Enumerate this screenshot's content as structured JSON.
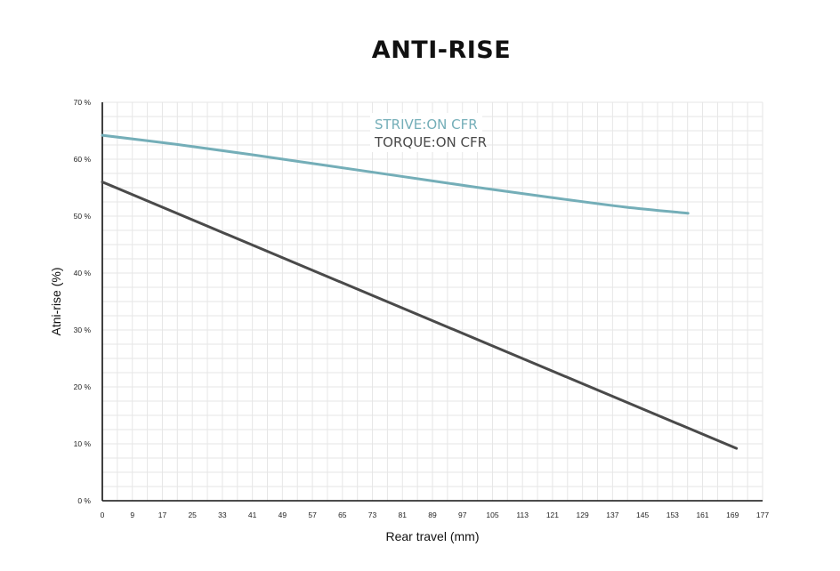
{
  "chart_data": {
    "type": "line",
    "title": "ANTI-RISE",
    "xlabel": "Rear travel (mm)",
    "ylabel": "Atni-rise (%)",
    "xlim": [
      0,
      177
    ],
    "ylim": [
      0,
      70
    ],
    "x_ticks": [
      "0",
      "9",
      "17",
      "25",
      "33",
      "41",
      "49",
      "57",
      "65",
      "73",
      "81",
      "89",
      "97",
      "105",
      "113",
      "121",
      "129",
      "137",
      "145",
      "153",
      "161",
      "169",
      "177"
    ],
    "y_ticks": [
      "0 %",
      "10 %",
      "20 %",
      "30 %",
      "40 %",
      "50 %",
      "60 %",
      "70 %"
    ],
    "grid": true,
    "legend_position": "top-left",
    "series": [
      {
        "name": "STRIVE:ON CFR",
        "color": "#74aeb8",
        "x": [
          0,
          20,
          40,
          60,
          80,
          100,
          120,
          140,
          157
        ],
        "y": [
          64.2,
          62.6,
          60.8,
          58.9,
          57.0,
          55.1,
          53.3,
          51.6,
          50.5
        ]
      },
      {
        "name": "TORQUE:ON CFR",
        "color": "#4a4a4a",
        "x": [
          0,
          170
        ],
        "y": [
          56.0,
          9.2
        ]
      }
    ]
  }
}
